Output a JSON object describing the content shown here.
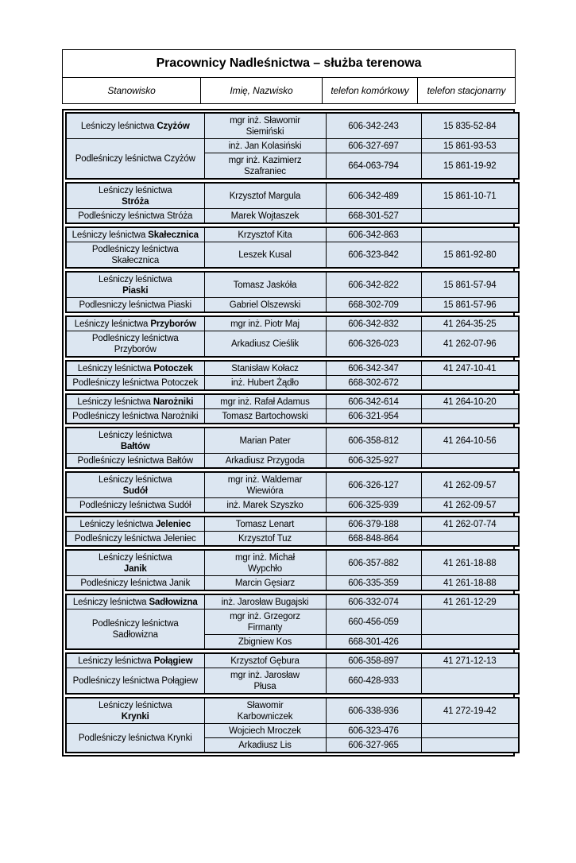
{
  "document": {
    "title": "Pracownicy Nadleśnictwa – służba terenowa",
    "columns": [
      "Stanowisko",
      "Imię, Nazwisko",
      "telefon komórkowy",
      "telefon stacjonarny"
    ]
  },
  "colors": {
    "cell_bg": "#dce6f1",
    "border": "#000000",
    "page_bg": "#ffffff"
  },
  "groups": [
    {
      "name": "Czyżów",
      "rows": [
        {
          "position": {
            "line1": "Leśniczy leśnictwa",
            "line2": "Czyżów",
            "bold": true,
            "two_line": false,
            "rowspan": 1
          },
          "person_lines": [
            "mgr inż. Sławomir",
            "Siemiński"
          ],
          "mobile": "606-342-243",
          "landline": "15 835-52-84"
        },
        {
          "position": {
            "line1": "Podleśniczy leśnictwa",
            "line2": "Czyżów",
            "bold": false,
            "two_line": false,
            "rowspan": 2
          },
          "person_lines": [
            "inż. Jan Kolasiński"
          ],
          "mobile": "606-327-697",
          "landline": "15 861-93-53"
        },
        {
          "position": null,
          "person_lines": [
            "mgr inż. Kazimierz",
            "Szafraniec"
          ],
          "mobile": "664-063-794",
          "landline": "15 861-19-92"
        }
      ]
    },
    {
      "name": "Stróża",
      "rows": [
        {
          "position": {
            "line1": "Leśniczy leśnictwa",
            "line2": "Stróża",
            "bold": true,
            "two_line": true,
            "rowspan": 1
          },
          "person_lines": [
            "Krzysztof Margula"
          ],
          "mobile": "606-342-489",
          "landline": "15 861-10-71"
        },
        {
          "position": {
            "line1": "Podleśniczy leśnictwa",
            "line2": "Stróża",
            "bold": false,
            "two_line": false,
            "rowspan": 1
          },
          "person_lines": [
            "Marek Wojtaszek"
          ],
          "mobile": "668-301-527",
          "landline": ""
        }
      ]
    },
    {
      "name": "Skałecznica",
      "rows": [
        {
          "position": {
            "line1": "Leśniczy leśnictwa",
            "line2": "Skałecznica",
            "bold": true,
            "two_line": false,
            "rowspan": 1
          },
          "person_lines": [
            "Krzysztof Kita"
          ],
          "mobile": "606-342-863",
          "landline": ""
        },
        {
          "position": {
            "line1": "Podleśniczy leśnictwa",
            "line2": "Skałecznica",
            "bold": false,
            "two_line": true,
            "rowspan": 1
          },
          "person_lines": [
            "Leszek Kusal"
          ],
          "mobile": "606-323-842",
          "landline": "15 861-92-80"
        }
      ]
    },
    {
      "name": "Piaski",
      "rows": [
        {
          "position": {
            "line1": "Leśniczy leśnictwa",
            "line2": "Piaski",
            "bold": true,
            "two_line": true,
            "rowspan": 1
          },
          "person_lines": [
            "Tomasz Jaskóła"
          ],
          "mobile": "606-342-822",
          "landline": "15 861-57-94"
        },
        {
          "position": {
            "line1": "Podlesniczy leśnictwa",
            "line2": "Piaski",
            "bold": false,
            "two_line": false,
            "rowspan": 1
          },
          "person_lines": [
            "Gabriel Olszewski"
          ],
          "mobile": "668-302-709",
          "landline": "15 861-57-96"
        }
      ]
    },
    {
      "name": "Przyborów",
      "rows": [
        {
          "position": {
            "line1": "Leśniczy leśnictwa",
            "line2": "Przyborów",
            "bold": true,
            "two_line": false,
            "rowspan": 1
          },
          "person_lines": [
            "mgr inż. Piotr Maj"
          ],
          "mobile": "606-342-832",
          "landline": "41 264-35-25"
        },
        {
          "position": {
            "line1": "Podleśniczy leśnictwa",
            "line2": "Przyborów",
            "bold": false,
            "two_line": true,
            "rowspan": 1
          },
          "person_lines": [
            "Arkadiusz Cieślik"
          ],
          "mobile": "606-326-023",
          "landline": "41 262-07-96"
        }
      ]
    },
    {
      "name": "Potoczek",
      "rows": [
        {
          "position": {
            "line1": "Leśniczy leśnictwa",
            "line2": "Potoczek",
            "bold": true,
            "two_line": false,
            "rowspan": 1
          },
          "person_lines": [
            "Stanisław Kołacz"
          ],
          "mobile": "606-342-347",
          "landline": "41 247-10-41"
        },
        {
          "position": {
            "line1": "Podleśniczy leśnictwa",
            "line2": "Potoczek",
            "bold": false,
            "two_line": false,
            "rowspan": 1
          },
          "person_lines": [
            "inż. Hubert Żądło"
          ],
          "mobile": "668-302-672",
          "landline": ""
        }
      ]
    },
    {
      "name": "Narożniki",
      "rows": [
        {
          "position": {
            "line1": "Leśniczy leśnictwa",
            "line2": "Narożniki",
            "bold": true,
            "two_line": false,
            "rowspan": 1
          },
          "person_lines": [
            "mgr inż. Rafał Adamus"
          ],
          "mobile": "606-342-614",
          "landline": "41 264-10-20"
        },
        {
          "position": {
            "line1": "Podleśniczy leśnictwa",
            "line2": "Narożniki",
            "bold": false,
            "two_line": false,
            "rowspan": 1
          },
          "person_lines": [
            "Tomasz Bartochowski"
          ],
          "mobile": "606-321-954",
          "landline": ""
        }
      ]
    },
    {
      "name": "Bałtów",
      "rows": [
        {
          "position": {
            "line1": "Leśniczy leśnictwa",
            "line2": "Bałtów",
            "bold": true,
            "two_line": true,
            "rowspan": 1
          },
          "person_lines": [
            "Marian Pater"
          ],
          "mobile": "606-358-812",
          "landline": "41 264-10-56"
        },
        {
          "position": {
            "line1": "Podleśniczy leśnictwa",
            "line2": "Bałtów",
            "bold": false,
            "two_line": false,
            "rowspan": 1
          },
          "person_lines": [
            "Arkadiusz Przygoda"
          ],
          "mobile": "606-325-927",
          "landline": ""
        }
      ]
    },
    {
      "name": "Sudół",
      "rows": [
        {
          "position": {
            "line1": "Leśniczy leśnictwa",
            "line2": "Sudół",
            "bold": true,
            "two_line": true,
            "rowspan": 1
          },
          "person_lines": [
            "mgr inż. Waldemar",
            "Wiewióra"
          ],
          "mobile": "606-326-127",
          "landline": "41 262-09-57"
        },
        {
          "position": {
            "line1": "Podleśniczy leśnictwa",
            "line2": "Sudół",
            "bold": false,
            "two_line": false,
            "rowspan": 1
          },
          "person_lines": [
            "inż. Marek Szyszko"
          ],
          "mobile": "606-325-939",
          "landline": "41 262-09-57"
        }
      ]
    },
    {
      "name": "Jeleniec",
      "rows": [
        {
          "position": {
            "line1": "Leśniczy leśnictwa",
            "line2": "Jeleniec",
            "bold": true,
            "two_line": false,
            "rowspan": 1
          },
          "person_lines": [
            "Tomasz Lenart"
          ],
          "mobile": "606-379-188",
          "landline": "41 262-07-74"
        },
        {
          "position": {
            "line1": "Podleśniczy leśnictwa",
            "line2": "Jeleniec",
            "bold": false,
            "two_line": false,
            "rowspan": 1
          },
          "person_lines": [
            "Krzysztof Tuz"
          ],
          "mobile": "668-848-864",
          "landline": ""
        }
      ]
    },
    {
      "name": "Janik",
      "rows": [
        {
          "position": {
            "line1": "Leśniczy leśnictwa",
            "line2": "Janik",
            "bold": true,
            "two_line": true,
            "rowspan": 1
          },
          "person_lines": [
            "mgr inż. Michał",
            "Wypchło"
          ],
          "mobile": "606-357-882",
          "landline": "41 261-18-88"
        },
        {
          "position": {
            "line1": "Podleśniczy leśnictwa",
            "line2": "Janik",
            "bold": false,
            "two_line": false,
            "rowspan": 1
          },
          "person_lines": [
            "Marcin Gęsiarz"
          ],
          "mobile": "606-335-359",
          "landline": "41 261-18-88"
        }
      ]
    },
    {
      "name": "Sadłowizna",
      "rows": [
        {
          "position": {
            "line1": "Leśniczy leśnictwa",
            "line2": "Sadłowizna",
            "bold": true,
            "two_line": false,
            "rowspan": 1
          },
          "person_lines": [
            "inż. Jarosław Bugajski"
          ],
          "mobile": "606-332-074",
          "landline": "41 261-12-29"
        },
        {
          "position": {
            "line1": "Podleśniczy leśnictwa",
            "line2": "Sadłowizna",
            "bold": false,
            "two_line": true,
            "rowspan": 2
          },
          "person_lines": [
            "mgr inż. Grzegorz",
            "Firmanty"
          ],
          "mobile": "660-456-059",
          "landline": ""
        },
        {
          "position": null,
          "person_lines": [
            "Zbigniew Kos"
          ],
          "mobile": "668-301-426",
          "landline": ""
        }
      ]
    },
    {
      "name": "Połągiew",
      "rows": [
        {
          "position": {
            "line1": "Leśniczy leśnictwa",
            "line2": "Połągiew",
            "bold": true,
            "two_line": false,
            "rowspan": 1
          },
          "person_lines": [
            "Krzysztof Gębura"
          ],
          "mobile": "606-358-897",
          "landline": "41 271-12-13"
        },
        {
          "position": {
            "line1": "Podleśniczy leśnictwa",
            "line2": "Połągiew",
            "bold": false,
            "two_line": false,
            "rowspan": 1
          },
          "person_lines": [
            "mgr inż. Jarosław",
            "Płusa"
          ],
          "mobile": "660-428-933",
          "landline": ""
        }
      ]
    },
    {
      "name": "Krynki",
      "rows": [
        {
          "position": {
            "line1": "Leśniczy leśnictwa",
            "line2": "Krynki",
            "bold": true,
            "two_line": true,
            "rowspan": 1
          },
          "person_lines": [
            "Sławomir",
            "Karbowniczek"
          ],
          "mobile": "606-338-936",
          "landline": "41 272-19-42"
        },
        {
          "position": {
            "line1": "Podleśniczy leśnictwa",
            "line2": "Krynki",
            "bold": false,
            "two_line": false,
            "rowspan": 2
          },
          "person_lines": [
            "Wojciech Mroczek"
          ],
          "mobile": "606-323-476",
          "landline": ""
        },
        {
          "position": null,
          "person_lines": [
            "Arkadiusz Lis"
          ],
          "mobile": "606-327-965",
          "landline": ""
        }
      ]
    }
  ]
}
